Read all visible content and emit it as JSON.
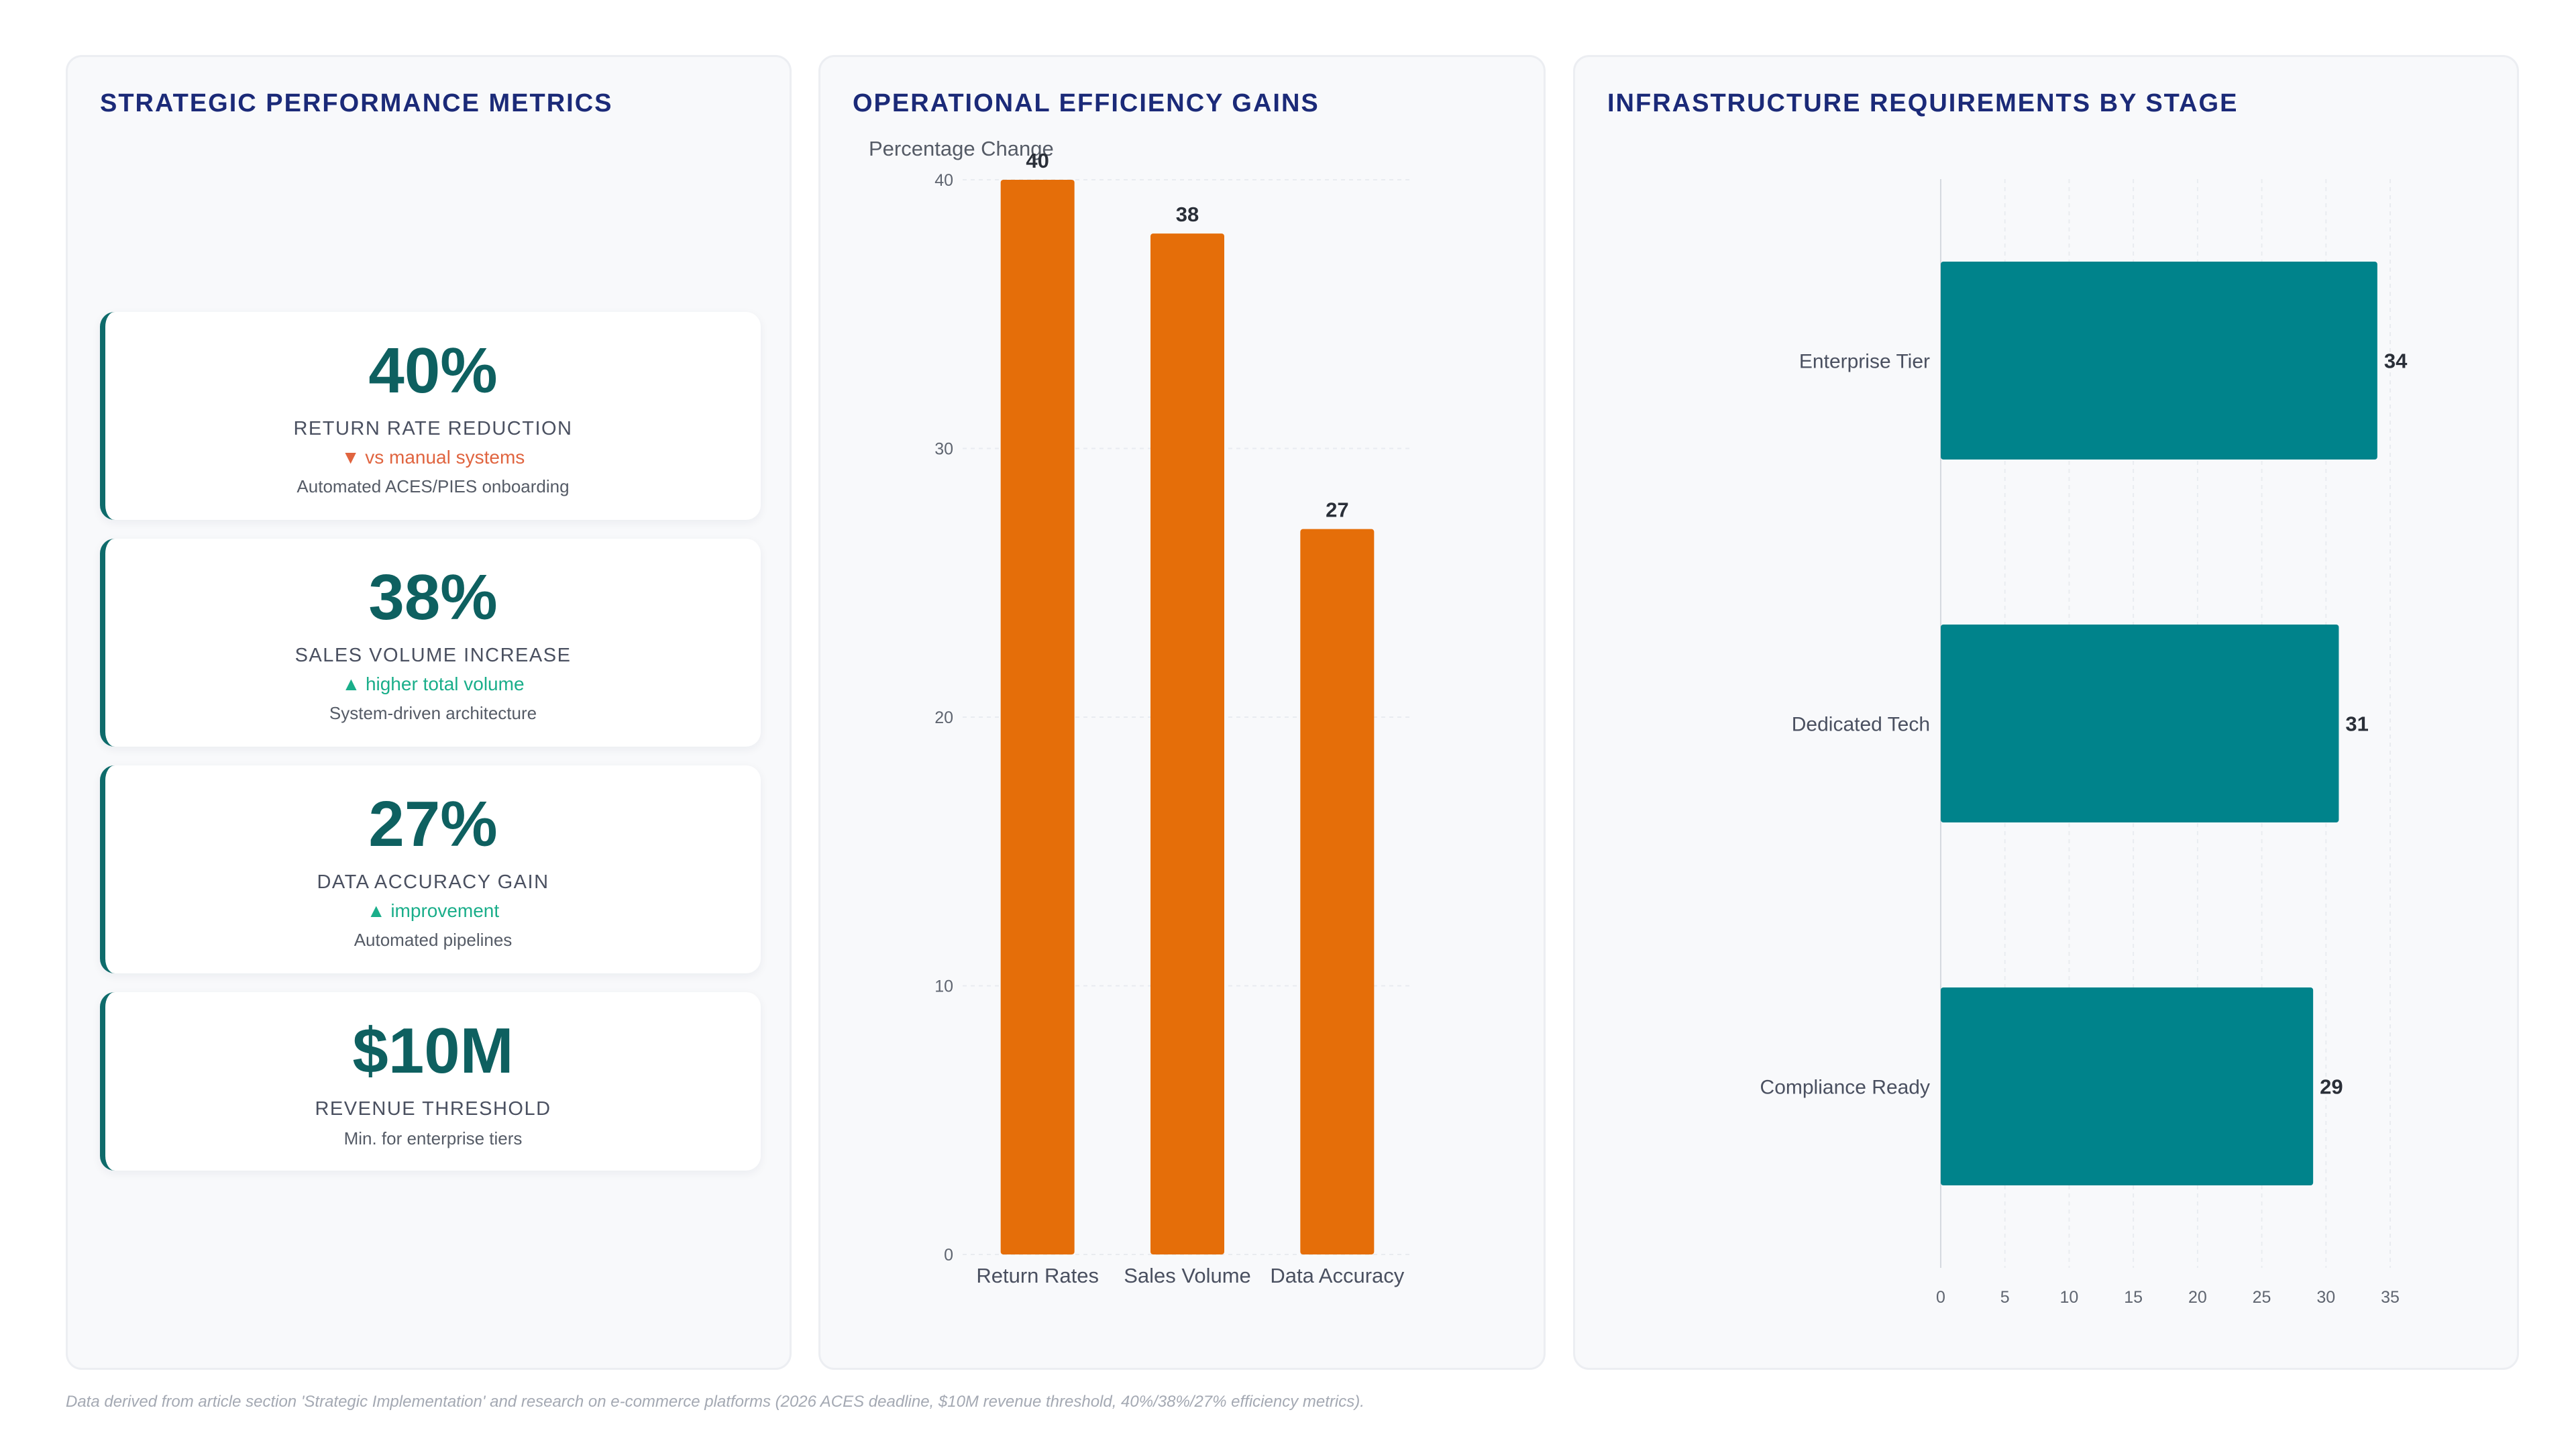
{
  "metrics_panel": {
    "title": "STRATEGIC PERFORMANCE METRICS",
    "cards": [
      {
        "value": "40%",
        "label": "RETURN RATE REDUCTION",
        "trend": "▼ vs manual systems",
        "trend_dir": "down",
        "note": "Automated ACES/PIES onboarding"
      },
      {
        "value": "38%",
        "label": "SALES VOLUME INCREASE",
        "trend": "▲ higher total volume",
        "trend_dir": "up",
        "note": "System-driven architecture"
      },
      {
        "value": "27%",
        "label": "DATA ACCURACY GAIN",
        "trend": "▲ improvement",
        "trend_dir": "up",
        "note": "Automated pipelines"
      },
      {
        "value": "$10M",
        "label": "REVENUE THRESHOLD",
        "trend": "",
        "trend_dir": "none",
        "note": "Min. for enterprise tiers"
      }
    ]
  },
  "efficiency_panel": {
    "title": "OPERATIONAL EFFICIENCY GAINS"
  },
  "infra_panel": {
    "title": "INFRASTRUCTURE REQUIREMENTS BY STAGE"
  },
  "colors": {
    "bar_orange": "#e56e09",
    "bar_teal": "#00838b",
    "title_navy": "#1b2a78",
    "metric_teal": "#0e6060"
  },
  "chart_data": [
    {
      "type": "bar",
      "orientation": "vertical",
      "categories": [
        "Return Rates",
        "Sales Volume",
        "Data Accuracy"
      ],
      "values": [
        40,
        38,
        27
      ],
      "ylabel": "Percentage Change",
      "xlabel": "",
      "ylim": [
        0,
        40
      ],
      "yticks": [
        0,
        10,
        20,
        30,
        40
      ],
      "grid": true,
      "data_labels": true
    },
    {
      "type": "bar",
      "orientation": "horizontal",
      "categories": [
        "Enterprise Tier",
        "Dedicated Tech",
        "Compliance Ready"
      ],
      "values": [
        34,
        31,
        29
      ],
      "xlim": [
        0,
        35
      ],
      "xticks": [
        0,
        5,
        10,
        15,
        20,
        25,
        30,
        35
      ],
      "grid": true,
      "data_labels": true
    }
  ],
  "footnote": "Data derived from article section 'Strategic Implementation' and research on e-commerce platforms (2026 ACES deadline, $10M revenue threshold, 40%/38%/27% efficiency metrics)."
}
